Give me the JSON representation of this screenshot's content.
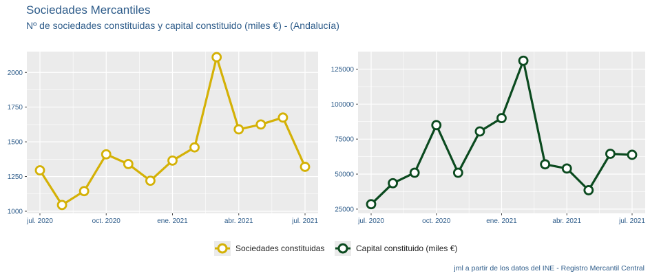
{
  "header": {
    "title": "Sociedades Mercantiles",
    "subtitle": "Nº de sociedades constituidas y capital constituido (miles €) - (Andalucía)"
  },
  "caption": "jml a partir de los datos del INE - Registro Mercantil Central",
  "colors": {
    "series1": "#d4b106",
    "series2": "#0b4a1f",
    "panel_bg": "#ebebeb",
    "grid": "#ffffff",
    "tick_text": "#2e5c8a"
  },
  "chart_data": [
    {
      "type": "line",
      "categories": [
        "2020-07",
        "2020-08",
        "2020-09",
        "2020-10",
        "2020-11",
        "2020-12",
        "2021-01",
        "2021-02",
        "2021-03",
        "2021-04",
        "2021-05",
        "2021-06",
        "2021-07"
      ],
      "x_tick_labels": [
        "jul. 2020",
        "oct. 2020",
        "ene. 2021",
        "abr. 2021",
        "jul. 2021"
      ],
      "x_tick_index": [
        0,
        3,
        6,
        9,
        12
      ],
      "series": [
        {
          "name": "Sociedades constituidas",
          "values": [
            1295,
            1045,
            1145,
            1410,
            1340,
            1220,
            1365,
            1460,
            2110,
            1590,
            1625,
            1675,
            1320
          ]
        }
      ],
      "y_ticks": [
        1000,
        1250,
        1500,
        1750,
        2000
      ],
      "y_tick_labels": [
        "1000",
        "1250",
        "1500",
        "1750",
        "2000"
      ],
      "ylim": [
        985,
        2150
      ],
      "title": "",
      "xlabel": "",
      "ylabel": ""
    },
    {
      "type": "line",
      "categories": [
        "2020-07",
        "2020-08",
        "2020-09",
        "2020-10",
        "2020-11",
        "2020-12",
        "2021-01",
        "2021-02",
        "2021-03",
        "2021-04",
        "2021-05",
        "2021-06",
        "2021-07"
      ],
      "x_tick_labels": [
        "jul. 2020",
        "oct. 2020",
        "ene. 2021",
        "abr. 2021",
        "jul. 2021"
      ],
      "x_tick_index": [
        0,
        3,
        6,
        9,
        12
      ],
      "series": [
        {
          "name": "Capital constituido (miles €)",
          "values": [
            28500,
            43500,
            51000,
            85000,
            51000,
            80500,
            90000,
            131000,
            57000,
            54000,
            38500,
            64500,
            63800
          ]
        }
      ],
      "y_ticks": [
        25000,
        50000,
        75000,
        100000,
        125000
      ],
      "y_tick_labels": [
        "25000",
        "50000",
        "75000",
        "100000",
        "125000"
      ],
      "ylim": [
        22000,
        137500
      ],
      "title": "",
      "xlabel": "",
      "ylabel": ""
    }
  ],
  "legend": [
    {
      "label": "Sociedades constituidas"
    },
    {
      "label": "Capital constituido (miles €)"
    }
  ]
}
